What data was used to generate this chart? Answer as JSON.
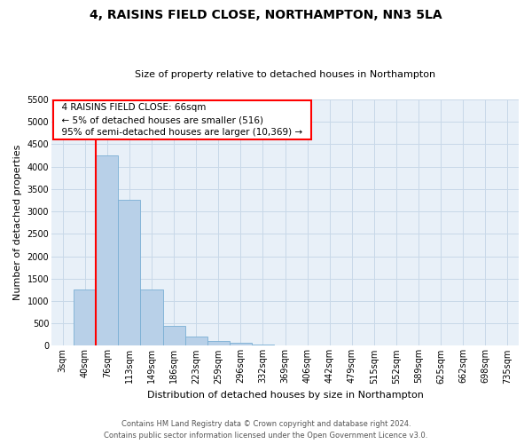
{
  "title": "4, RAISINS FIELD CLOSE, NORTHAMPTON, NN3 5LA",
  "subtitle": "Size of property relative to detached houses in Northampton",
  "xlabel": "Distribution of detached houses by size in Northampton",
  "ylabel": "Number of detached properties",
  "bar_color": "#b8d0e8",
  "bar_edge_color": "#7aafd4",
  "grid_color": "#c8d8e8",
  "background_color": "#e8f0f8",
  "categories": [
    "3sqm",
    "40sqm",
    "76sqm",
    "113sqm",
    "149sqm",
    "186sqm",
    "223sqm",
    "259sqm",
    "296sqm",
    "332sqm",
    "369sqm",
    "406sqm",
    "442sqm",
    "479sqm",
    "515sqm",
    "552sqm",
    "589sqm",
    "625sqm",
    "662sqm",
    "698sqm",
    "735sqm"
  ],
  "values": [
    0,
    1250,
    4250,
    3250,
    1250,
    450,
    200,
    100,
    60,
    20,
    0,
    0,
    0,
    0,
    0,
    0,
    0,
    0,
    0,
    0,
    0
  ],
  "ylim": [
    0,
    5500
  ],
  "yticks": [
    0,
    500,
    1000,
    1500,
    2000,
    2500,
    3000,
    3500,
    4000,
    4500,
    5000,
    5500
  ],
  "annotation_text": "  4 RAISINS FIELD CLOSE: 66sqm  \n  ← 5% of detached houses are smaller (516)  \n  95% of semi-detached houses are larger (10,369) →  ",
  "footer_line1": "Contains HM Land Registry data © Crown copyright and database right 2024.",
  "footer_line2": "Contains public sector information licensed under the Open Government Licence v3.0.",
  "title_fontsize": 10,
  "subtitle_fontsize": 8,
  "ylabel_fontsize": 8,
  "xlabel_fontsize": 8,
  "tick_fontsize": 7,
  "footer_fontsize": 6
}
